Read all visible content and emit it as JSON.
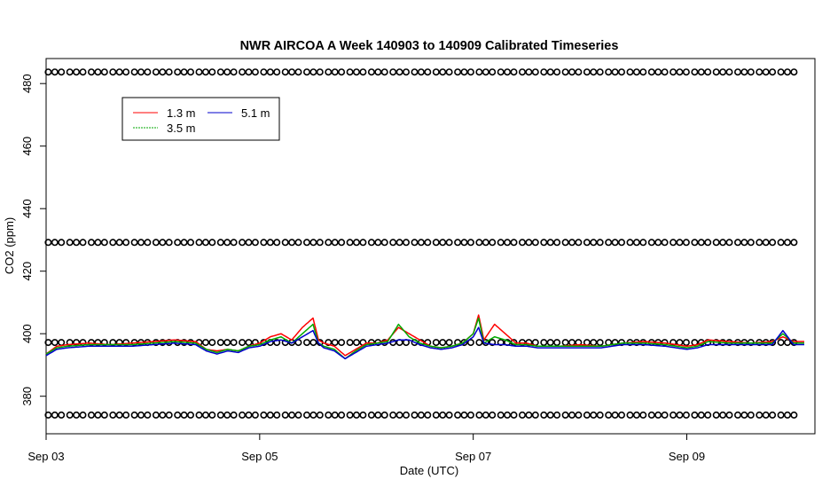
{
  "chart_data": {
    "type": "line",
    "title": "NWR AIRCOA A  Week 140903 to 140909  Calibrated Timeseries",
    "xlabel": "Date (UTC)",
    "ylabel": "CO2 (ppm)",
    "x_unit": "days",
    "xlim": [
      0,
      7.2
    ],
    "ylim": [
      368,
      488
    ],
    "x_ticks": [
      {
        "x": 0,
        "label": "Sep 03"
      },
      {
        "x": 2,
        "label": "Sep 05"
      },
      {
        "x": 4,
        "label": "Sep 07"
      },
      {
        "x": 6,
        "label": "Sep 09"
      }
    ],
    "y_ticks": [
      380,
      400,
      420,
      440,
      460,
      480
    ],
    "legend": {
      "position": "top-left",
      "entries": [
        {
          "name": "1.3 m",
          "color": "#ff0000"
        },
        {
          "name": "3.5 m",
          "color": "#00aa00"
        },
        {
          "name": "5.1 m",
          "color": "#0000cc"
        }
      ]
    },
    "series": [
      {
        "name": "1.3 m",
        "color": "#ff0000",
        "x": [
          0,
          0.1,
          0.2,
          0.4,
          0.6,
          0.8,
          1.0,
          1.2,
          1.4,
          1.5,
          1.6,
          1.7,
          1.8,
          1.9,
          2.0,
          2.1,
          2.2,
          2.3,
          2.4,
          2.5,
          2.55,
          2.6,
          2.7,
          2.8,
          2.9,
          3.0,
          3.1,
          3.2,
          3.3,
          3.4,
          3.5,
          3.6,
          3.7,
          3.8,
          3.9,
          4.0,
          4.05,
          4.1,
          4.2,
          4.3,
          4.4,
          4.5,
          4.6,
          4.8,
          5.0,
          5.2,
          5.4,
          5.6,
          5.8,
          6.0,
          6.1,
          6.2,
          6.4,
          6.6,
          6.8,
          6.9,
          7.0,
          7.1
        ],
        "y": [
          393.5,
          396,
          396.5,
          397,
          396.5,
          397,
          397.5,
          398,
          397.5,
          395,
          394.5,
          395,
          394.5,
          396,
          397,
          399,
          400,
          398,
          402,
          405,
          398,
          397,
          396,
          393,
          395,
          397,
          397,
          398,
          402,
          400,
          398,
          396,
          395.5,
          396,
          397,
          400,
          406,
          398,
          403,
          400,
          397,
          397,
          396,
          396,
          396.5,
          396,
          397,
          397.5,
          397,
          396,
          396.5,
          398,
          397.5,
          397,
          397.5,
          399,
          397.5,
          397.5
        ]
      },
      {
        "name": "3.5 m",
        "color": "#00aa00",
        "x": [
          0,
          0.1,
          0.2,
          0.4,
          0.6,
          0.8,
          1.0,
          1.2,
          1.4,
          1.5,
          1.6,
          1.7,
          1.8,
          1.9,
          2.0,
          2.1,
          2.2,
          2.3,
          2.4,
          2.5,
          2.55,
          2.6,
          2.7,
          2.8,
          2.9,
          3.0,
          3.1,
          3.2,
          3.3,
          3.4,
          3.5,
          3.6,
          3.7,
          3.8,
          3.9,
          4.0,
          4.05,
          4.1,
          4.2,
          4.3,
          4.4,
          4.5,
          4.6,
          4.8,
          5.0,
          5.2,
          5.4,
          5.6,
          5.8,
          6.0,
          6.1,
          6.2,
          6.4,
          6.6,
          6.8,
          6.9,
          7.0,
          7.1
        ],
        "y": [
          393.5,
          395.5,
          396,
          396.5,
          396.5,
          396.5,
          397,
          397.5,
          397,
          395,
          394,
          395,
          394.5,
          396,
          396.5,
          398,
          399,
          397,
          400,
          403,
          397,
          396,
          395,
          392,
          394.5,
          396.5,
          397,
          397.5,
          403,
          399,
          397,
          396,
          395.5,
          396,
          397,
          400,
          405,
          397,
          399,
          398,
          396.5,
          396.5,
          396,
          396,
          396,
          396,
          397,
          397,
          396.5,
          395.5,
          396,
          397.5,
          397,
          397,
          397,
          400,
          397,
          397
        ]
      },
      {
        "name": "5.1 m",
        "color": "#0000cc",
        "x": [
          0,
          0.1,
          0.2,
          0.4,
          0.6,
          0.8,
          1.0,
          1.2,
          1.4,
          1.5,
          1.6,
          1.7,
          1.8,
          1.9,
          2.0,
          2.1,
          2.2,
          2.3,
          2.4,
          2.5,
          2.55,
          2.6,
          2.7,
          2.8,
          2.9,
          3.0,
          3.1,
          3.2,
          3.3,
          3.4,
          3.5,
          3.6,
          3.7,
          3.8,
          3.9,
          4.0,
          4.05,
          4.1,
          4.2,
          4.3,
          4.4,
          4.5,
          4.6,
          4.8,
          5.0,
          5.2,
          5.4,
          5.6,
          5.8,
          6.0,
          6.1,
          6.2,
          6.4,
          6.6,
          6.8,
          6.9,
          7.0,
          7.1
        ],
        "y": [
          393,
          395,
          395.5,
          396,
          396,
          396,
          396.5,
          397,
          396.5,
          394.5,
          393.5,
          394.5,
          394,
          395.5,
          396,
          397.5,
          398,
          397,
          399,
          401,
          397,
          395.5,
          394.5,
          392,
          394,
          396,
          396.5,
          397,
          398,
          398,
          396.5,
          395.5,
          395,
          395.5,
          396.5,
          399,
          402,
          397,
          396.5,
          396.5,
          396,
          396,
          395.5,
          395.5,
          395.5,
          395.5,
          396.5,
          396.5,
          396,
          395,
          395.5,
          396.5,
          396.5,
          396.5,
          396.5,
          401,
          396.5,
          396.5
        ]
      }
    ],
    "reference_levels": [
      {
        "name": "circles",
        "y": 483.7
      },
      {
        "name": "circles",
        "y": 429.2
      },
      {
        "name": "circles",
        "y": 397.2
      },
      {
        "name": "circles",
        "y": 374.0
      }
    ],
    "reference_x_range": [
      0.02,
      7.05
    ]
  }
}
